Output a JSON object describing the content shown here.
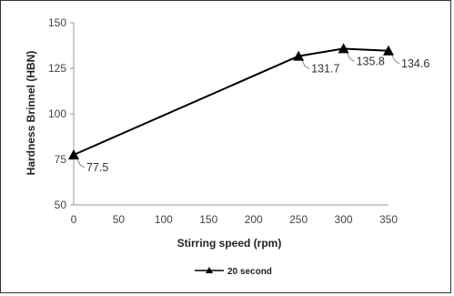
{
  "chart_data": {
    "type": "line",
    "title": "",
    "xlabel": "Stirring speed (rpm)",
    "ylabel": "Hardness Brinnel (HBN)",
    "xlim": [
      0,
      350
    ],
    "ylim": [
      50,
      150
    ],
    "x_ticks": [
      "0",
      "50",
      "100",
      "150",
      "200",
      "250",
      "300",
      "350"
    ],
    "y_ticks": [
      "50",
      "75",
      "100",
      "125",
      "150"
    ],
    "grid": false,
    "legend_position": "bottom",
    "series": [
      {
        "name": "20 second",
        "marker": "triangle",
        "color": "#000000",
        "x": [
          0,
          250,
          300,
          350
        ],
        "y": [
          77.5,
          131.7,
          135.8,
          134.6
        ],
        "labels": [
          "77.5",
          "131.7",
          "135.8",
          "134.6"
        ]
      }
    ]
  }
}
